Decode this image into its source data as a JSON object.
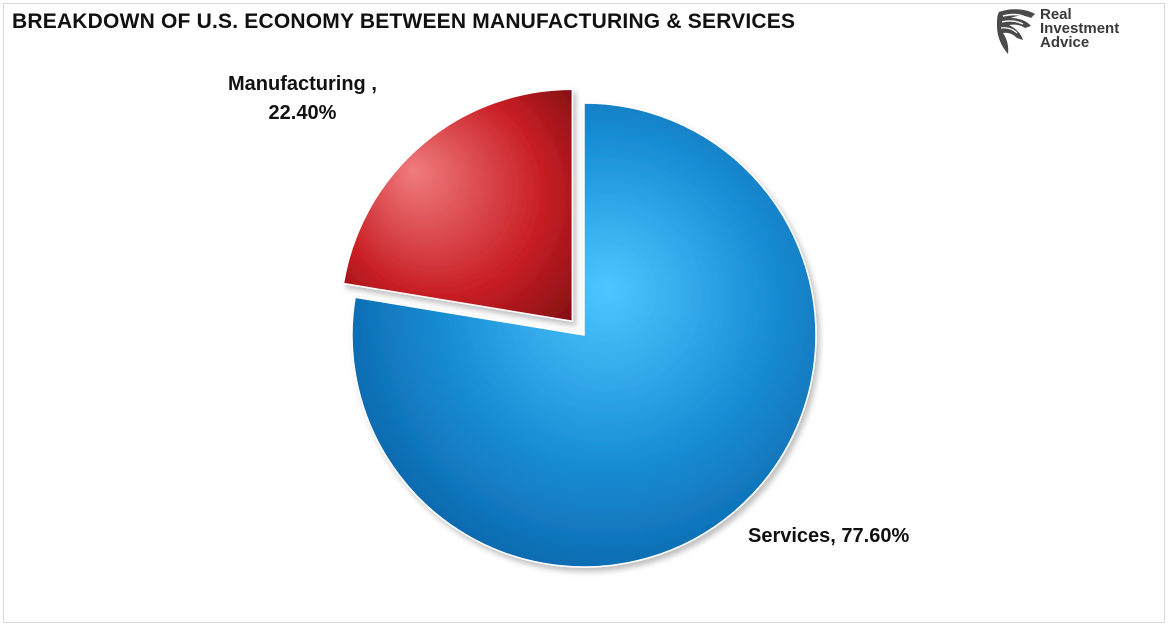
{
  "chart_data": {
    "type": "pie",
    "title": "BREAKDOWN OF U.S. ECONOMY BETWEEN MANUFACTURING & SERVICES",
    "slices": [
      {
        "name": "Services",
        "value": 77.6,
        "label": "Services, 77.60%",
        "color": "#1a8fd6",
        "highlight": "#4fc6ff",
        "shade": "#0a63a8"
      },
      {
        "name": "Manufacturing",
        "value": 22.4,
        "label_line1": "Manufacturing ,",
        "label_line2": "22.40%",
        "color": "#c81e24",
        "highlight": "#f07c7e",
        "shade": "#7a0d12",
        "exploded": true
      }
    ],
    "legend": "none"
  },
  "logo": {
    "line1": "Real",
    "line2": "Investment",
    "line3": "Advice",
    "icon": "eagle-head-icon"
  }
}
